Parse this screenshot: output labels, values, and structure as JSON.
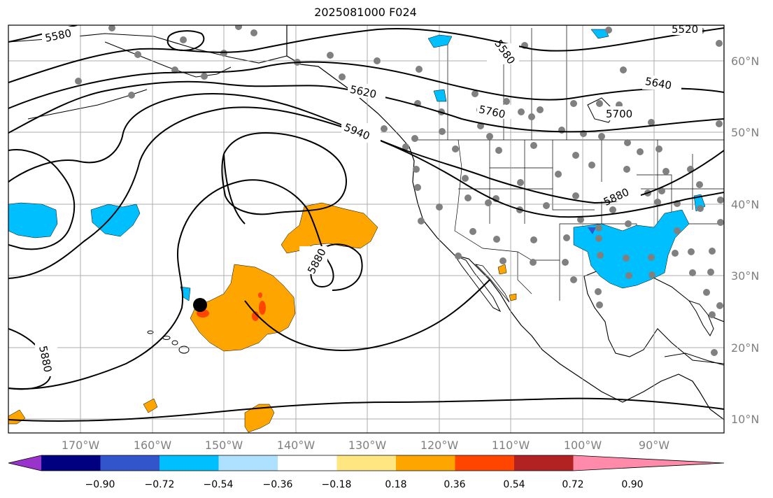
{
  "title": "2025081000 F024",
  "axes": {
    "lon_labels": [
      "170°W",
      "160°W",
      "150°W",
      "140°W",
      "130°W",
      "120°W",
      "110°W",
      "100°W",
      "90°W"
    ],
    "lat_labels": [
      "60°N",
      "50°N",
      "40°N",
      "30°N",
      "20°N",
      "10°N"
    ]
  },
  "contour_labels": [
    "5580",
    "5580",
    "5620",
    "5640",
    "5700",
    "5760",
    "5880",
    "5880",
    "5880",
    "5940",
    "5520"
  ],
  "colorbar": {
    "tick_labels": [
      "−0.90",
      "−0.72",
      "−0.54",
      "−0.36",
      "−0.18",
      "0.18",
      "0.36",
      "0.54",
      "0.72",
      "0.90"
    ],
    "colors": [
      "#9933cc",
      "#000080",
      "#3355cc",
      "#00bfff",
      "#aee0ff",
      "#ffffff",
      "#ffe680",
      "#ffa500",
      "#ff4500",
      "#b22222",
      "#ff8aaa"
    ]
  },
  "colors": {
    "land_fill": "#ffffff",
    "grid": "#999999",
    "station": "#808080",
    "contour": "#000000"
  }
}
